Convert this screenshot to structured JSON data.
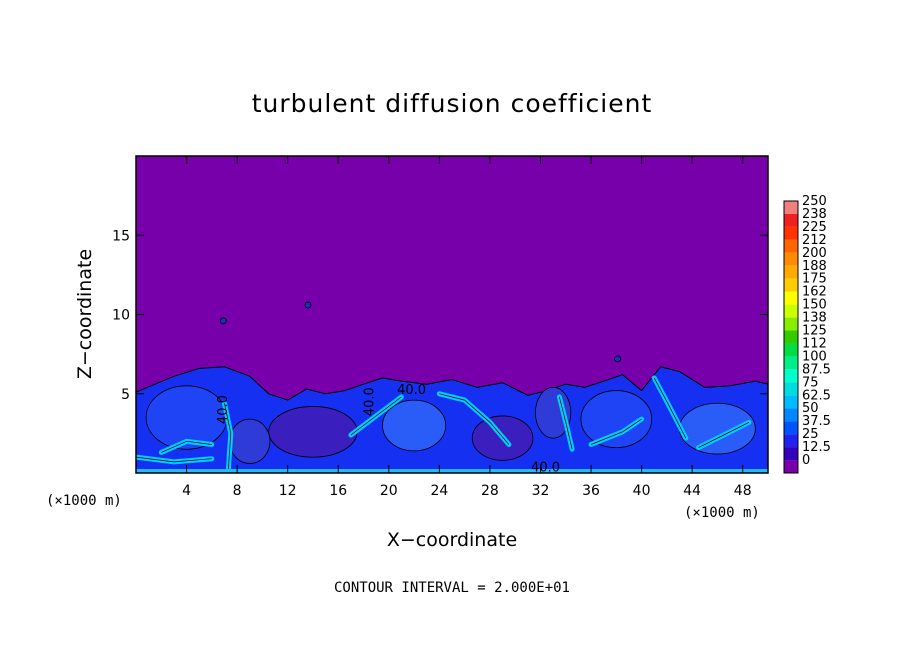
{
  "chart_data": {
    "type": "heatmap",
    "title": "turbulent diffusion coefficient",
    "xlabel": "X−coordinate",
    "ylabel": "Z−coordinate",
    "x_unit": "(×1000 m)",
    "z_unit": "(×1000 m)",
    "xlim": [
      0,
      50
    ],
    "ylim": [
      0,
      20
    ],
    "x_ticks": [
      4,
      8,
      12,
      16,
      20,
      24,
      28,
      32,
      36,
      40,
      44,
      48
    ],
    "y_ticks": [
      5,
      10,
      15
    ],
    "colorbar_levels": [
      "250",
      "238",
      "225",
      "212",
      "200",
      "188",
      "175",
      "162",
      "150",
      "138",
      "125",
      "112",
      "100",
      "87.5",
      "75",
      "62.5",
      "50",
      "37.5",
      "25",
      "12.5",
      "0"
    ],
    "colorbar_colors": [
      "#f08080",
      "#ee2020",
      "#ff3300",
      "#ff6600",
      "#ff8c00",
      "#ffaa00",
      "#ffcc00",
      "#ffff00",
      "#ccff00",
      "#88ee00",
      "#33cc00",
      "#00dd44",
      "#00ee88",
      "#00ffcc",
      "#00dddd",
      "#00bbff",
      "#0088ff",
      "#0055ff",
      "#2222ee",
      "#3300bb",
      "#7700aa"
    ],
    "contour_interval": "CONTOUR INTERVAL = 2.000E+01",
    "contour_labels": [
      "40.0",
      "40.0",
      "40.0",
      "40.0"
    ],
    "background_value_color": "#7700aa",
    "turbulent_layer_top_approx_km": 6
  }
}
